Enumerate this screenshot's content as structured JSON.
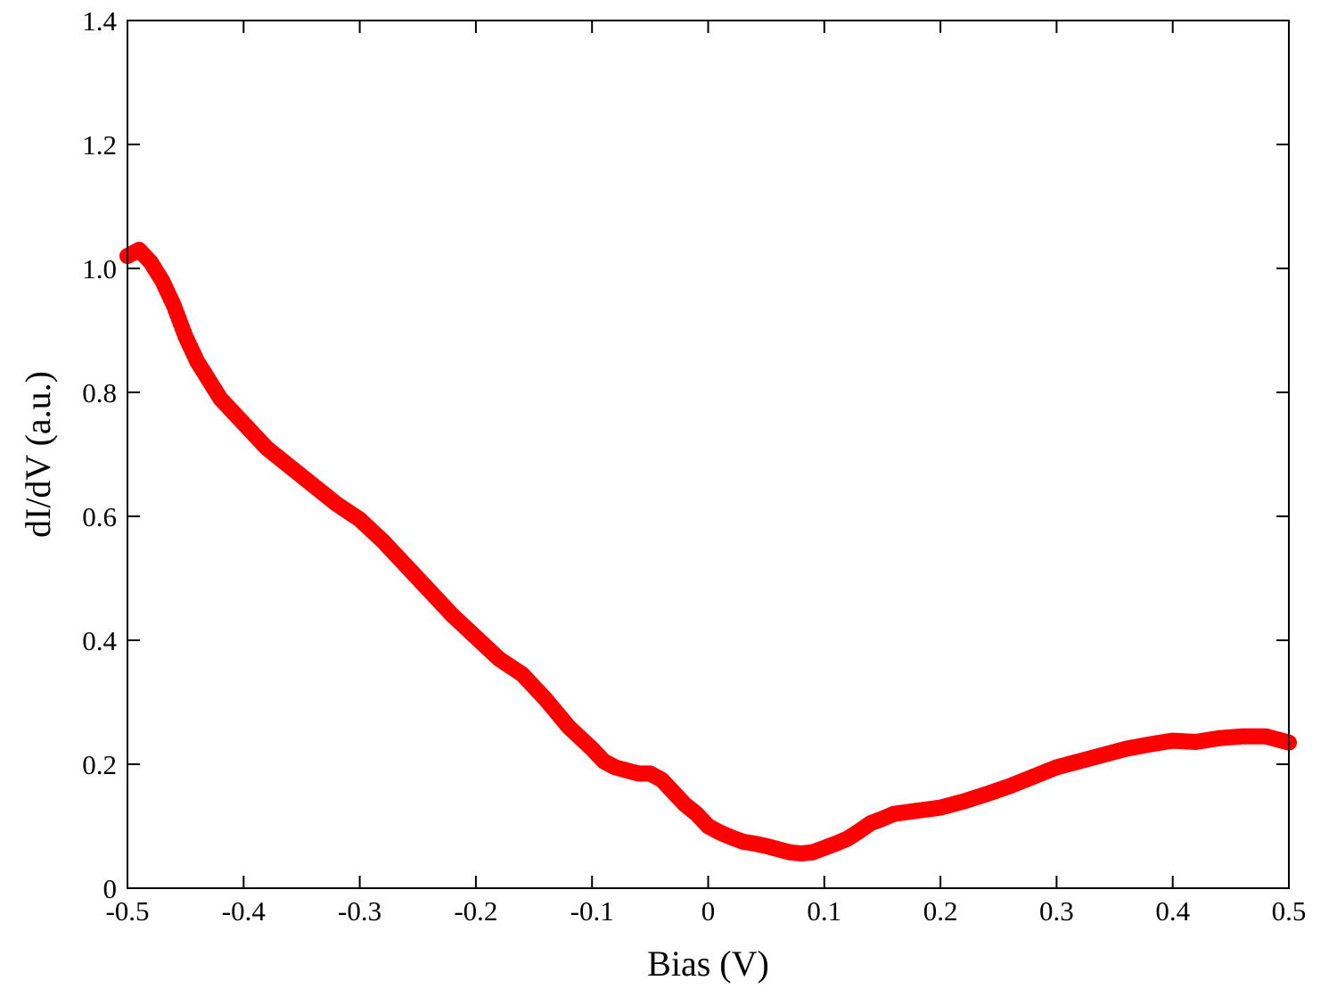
{
  "chart_data": {
    "type": "scatter",
    "xlabel": "Bias (V)",
    "ylabel": "dI/dV (a.u.)",
    "xlim": [
      -0.5,
      0.5
    ],
    "ylim": [
      0,
      1.4
    ],
    "xticks": [
      -0.5,
      -0.4,
      -0.3,
      -0.2,
      -0.1,
      0,
      0.1,
      0.2,
      0.3,
      0.4,
      0.5
    ],
    "xtick_labels": [
      "-0.5",
      "-0.4",
      "-0.3",
      "-0.2",
      "-0.1",
      "0",
      "0.1",
      "0.2",
      "0.3",
      "0.4",
      "0.5"
    ],
    "yticks": [
      0,
      0.2,
      0.4,
      0.6,
      0.8,
      1.0,
      1.2,
      1.4
    ],
    "ytick_labels": [
      "0",
      "0.2",
      "0.4",
      "0.6",
      "0.8",
      "1.0",
      "1.2",
      "1.4"
    ],
    "grid": false,
    "marker_color": "#ff0000",
    "x": [
      -0.5,
      -0.49,
      -0.48,
      -0.47,
      -0.46,
      -0.45,
      -0.44,
      -0.43,
      -0.42,
      -0.41,
      -0.4,
      -0.38,
      -0.36,
      -0.34,
      -0.32,
      -0.3,
      -0.28,
      -0.26,
      -0.24,
      -0.22,
      -0.2,
      -0.18,
      -0.16,
      -0.14,
      -0.12,
      -0.1,
      -0.09,
      -0.08,
      -0.07,
      -0.06,
      -0.05,
      -0.04,
      -0.03,
      -0.02,
      -0.01,
      0,
      0.01,
      0.02,
      0.03,
      0.04,
      0.05,
      0.06,
      0.07,
      0.08,
      0.09,
      0.1,
      0.11,
      0.12,
      0.13,
      0.14,
      0.15,
      0.16,
      0.18,
      0.2,
      0.22,
      0.24,
      0.26,
      0.28,
      0.3,
      0.32,
      0.34,
      0.36,
      0.38,
      0.4,
      0.42,
      0.44,
      0.46,
      0.48,
      0.5
    ],
    "y": [
      1.02,
      1.03,
      1.01,
      0.98,
      0.94,
      0.89,
      0.85,
      0.82,
      0.79,
      0.77,
      0.75,
      0.71,
      0.68,
      0.65,
      0.62,
      0.595,
      0.56,
      0.52,
      0.48,
      0.44,
      0.405,
      0.37,
      0.345,
      0.305,
      0.26,
      0.225,
      0.205,
      0.195,
      0.19,
      0.185,
      0.185,
      0.175,
      0.155,
      0.135,
      0.12,
      0.1,
      0.09,
      0.082,
      0.075,
      0.072,
      0.068,
      0.063,
      0.058,
      0.056,
      0.058,
      0.065,
      0.072,
      0.08,
      0.092,
      0.105,
      0.112,
      0.12,
      0.125,
      0.13,
      0.14,
      0.152,
      0.165,
      0.18,
      0.195,
      0.205,
      0.215,
      0.225,
      0.232,
      0.238,
      0.236,
      0.242,
      0.245,
      0.245,
      0.235
    ]
  }
}
